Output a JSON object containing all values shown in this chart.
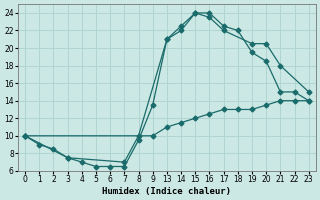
{
  "xlabel": "Humidex (Indice chaleur)",
  "background_color": "#cce8e4",
  "grid_color": "#b0d4cf",
  "line_color": "#1a6b6b",
  "ylim": [
    6,
    25
  ],
  "yticks": [
    6,
    8,
    10,
    12,
    14,
    16,
    18,
    20,
    22,
    24
  ],
  "xtick_labels": [
    "0",
    "1",
    "2",
    "3",
    "4",
    "5",
    "6",
    "7",
    "8",
    "9",
    "13",
    "14",
    "15",
    "16",
    "17",
    "18",
    "19",
    "20",
    "21",
    "22",
    "23"
  ],
  "line1_x": [
    0,
    1,
    2,
    3,
    4,
    5,
    6,
    7,
    8,
    9,
    13,
    14,
    15,
    16,
    17,
    18,
    19,
    20,
    21,
    22,
    23
  ],
  "line1_y": [
    10,
    9,
    8.5,
    7.5,
    7,
    6.5,
    6.5,
    6.5,
    9.5,
    13.5,
    21,
    22.5,
    24,
    24,
    22.5,
    22,
    19.5,
    18.5,
    15,
    15,
    14
  ],
  "line2_x": [
    0,
    3,
    7,
    8,
    13,
    14,
    15,
    16,
    17,
    19,
    20,
    21,
    23
  ],
  "line2_y": [
    10,
    7.5,
    7,
    10,
    21,
    22,
    24,
    23.5,
    22,
    20.5,
    20.5,
    18,
    15
  ],
  "line3_x": [
    0,
    9,
    13,
    14,
    15,
    16,
    17,
    18,
    19,
    20,
    21,
    22,
    23
  ],
  "line3_y": [
    10,
    10,
    11,
    11.5,
    12,
    12.5,
    13,
    13,
    13,
    13.5,
    14,
    14,
    14
  ]
}
